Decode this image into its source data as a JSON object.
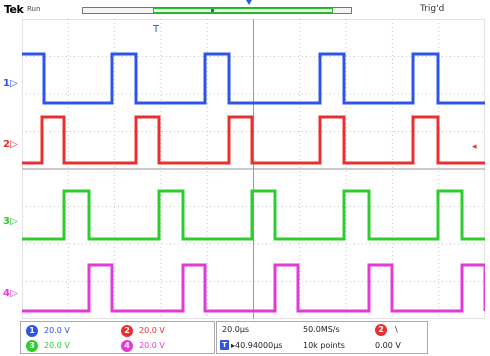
{
  "header": {
    "brand": "Tek",
    "acq_state": "Run",
    "trigger_state": "Trig'd",
    "trigger_marker": "T"
  },
  "channels": [
    {
      "id": "1",
      "color": "#2f54e8",
      "scale": "20.0 V",
      "indicator": "1▷"
    },
    {
      "id": "2",
      "color": "#e83030",
      "scale": "20.0 V",
      "indicator": "2▷"
    },
    {
      "id": "3",
      "color": "#2ecc2e",
      "scale": "20.0 V",
      "indicator": "3▷"
    },
    {
      "id": "4",
      "color": "#e23ad8",
      "scale": "20.0 V",
      "indicator": "4▷"
    }
  ],
  "trigger_level_marker": "◂",
  "timebase": {
    "time_per_div": "20.0µs",
    "sample_rate": "50.0MS/s",
    "trigger_source": "2",
    "trigger_slope": "\\",
    "delay": "▸40.94000µs",
    "record_length": "10k points",
    "trigger_level": "0.00 V"
  }
}
